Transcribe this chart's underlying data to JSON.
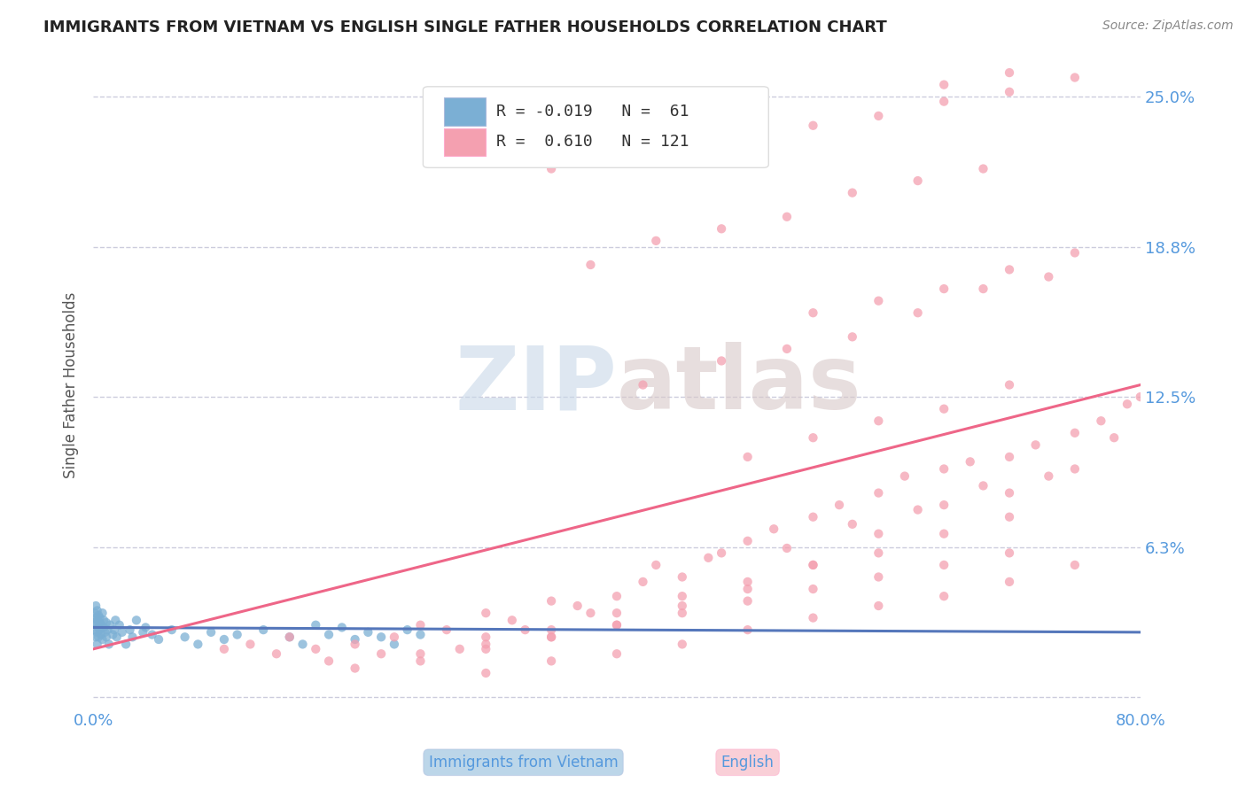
{
  "title": "IMMIGRANTS FROM VIETNAM VS ENGLISH SINGLE FATHER HOUSEHOLDS CORRELATION CHART",
  "source": "Source: ZipAtlas.com",
  "xlabel_blue": "Immigrants from Vietnam",
  "xlabel_pink": "English",
  "ylabel": "Single Father Households",
  "watermark_top": "ZIP",
  "watermark_bot": "atlas",
  "xlim": [
    0.0,
    0.8
  ],
  "ylim": [
    -0.005,
    0.265
  ],
  "ytick_vals": [
    0.0,
    0.0625,
    0.125,
    0.1875,
    0.25
  ],
  "ytick_labels": [
    "",
    "6.3%",
    "12.5%",
    "18.8%",
    "25.0%"
  ],
  "blue_R": -0.019,
  "blue_N": 61,
  "pink_R": 0.61,
  "pink_N": 121,
  "blue_color": "#7BAFD4",
  "pink_color": "#F4A0B0",
  "blue_line_color": "#5577BB",
  "pink_line_color": "#EE6688",
  "grid_color": "#CCCCDD",
  "title_color": "#222222",
  "axis_label_color": "#555555",
  "tick_label_color": "#5599DD",
  "blue_scatter_x": [
    0.001,
    0.001,
    0.001,
    0.002,
    0.002,
    0.002,
    0.002,
    0.003,
    0.003,
    0.003,
    0.003,
    0.004,
    0.004,
    0.004,
    0.005,
    0.005,
    0.005,
    0.006,
    0.006,
    0.007,
    0.007,
    0.008,
    0.008,
    0.009,
    0.01,
    0.01,
    0.011,
    0.012,
    0.013,
    0.015,
    0.016,
    0.017,
    0.018,
    0.02,
    0.022,
    0.025,
    0.028,
    0.03,
    0.033,
    0.038,
    0.04,
    0.045,
    0.05,
    0.06,
    0.07,
    0.08,
    0.09,
    0.1,
    0.11,
    0.13,
    0.15,
    0.16,
    0.17,
    0.18,
    0.19,
    0.2,
    0.21,
    0.22,
    0.23,
    0.24,
    0.25
  ],
  "blue_scatter_y": [
    0.031,
    0.028,
    0.035,
    0.033,
    0.025,
    0.038,
    0.03,
    0.027,
    0.032,
    0.036,
    0.022,
    0.029,
    0.034,
    0.025,
    0.028,
    0.033,
    0.031,
    0.026,
    0.03,
    0.024,
    0.035,
    0.029,
    0.032,
    0.027,
    0.031,
    0.025,
    0.028,
    0.022,
    0.03,
    0.026,
    0.028,
    0.032,
    0.025,
    0.03,
    0.027,
    0.022,
    0.028,
    0.025,
    0.032,
    0.027,
    0.029,
    0.026,
    0.024,
    0.028,
    0.025,
    0.022,
    0.027,
    0.024,
    0.026,
    0.028,
    0.025,
    0.022,
    0.03,
    0.026,
    0.029,
    0.024,
    0.027,
    0.025,
    0.022,
    0.028,
    0.026
  ],
  "pink_scatter_x": [
    0.1,
    0.12,
    0.14,
    0.15,
    0.17,
    0.18,
    0.2,
    0.22,
    0.23,
    0.25,
    0.27,
    0.28,
    0.3,
    0.3,
    0.32,
    0.33,
    0.35,
    0.35,
    0.37,
    0.38,
    0.4,
    0.4,
    0.42,
    0.43,
    0.45,
    0.45,
    0.47,
    0.48,
    0.5,
    0.5,
    0.52,
    0.53,
    0.55,
    0.55,
    0.57,
    0.58,
    0.6,
    0.6,
    0.62,
    0.63,
    0.65,
    0.65,
    0.67,
    0.68,
    0.7,
    0.7,
    0.72,
    0.73,
    0.75,
    0.75,
    0.77,
    0.78,
    0.79,
    0.8,
    0.25,
    0.3,
    0.35,
    0.4,
    0.45,
    0.5,
    0.55,
    0.6,
    0.65,
    0.7,
    0.3,
    0.35,
    0.4,
    0.45,
    0.5,
    0.55,
    0.6,
    0.65,
    0.7,
    0.75,
    0.2,
    0.25,
    0.3,
    0.35,
    0.4,
    0.45,
    0.5,
    0.55,
    0.6,
    0.65,
    0.7,
    0.42,
    0.48,
    0.53,
    0.58,
    0.63,
    0.68,
    0.73,
    0.5,
    0.55,
    0.6,
    0.65,
    0.7,
    0.38,
    0.43,
    0.48,
    0.53,
    0.58,
    0.63,
    0.68,
    0.55,
    0.6,
    0.65,
    0.7,
    0.75,
    0.35,
    0.4,
    0.45,
    0.5,
    0.55,
    0.6,
    0.65,
    0.7,
    0.75,
    0.65,
    0.7
  ],
  "pink_scatter_y": [
    0.02,
    0.022,
    0.018,
    0.025,
    0.02,
    0.015,
    0.022,
    0.018,
    0.025,
    0.03,
    0.028,
    0.02,
    0.025,
    0.035,
    0.032,
    0.028,
    0.04,
    0.025,
    0.038,
    0.035,
    0.042,
    0.03,
    0.048,
    0.055,
    0.05,
    0.038,
    0.058,
    0.06,
    0.065,
    0.045,
    0.07,
    0.062,
    0.075,
    0.055,
    0.08,
    0.072,
    0.085,
    0.068,
    0.092,
    0.078,
    0.095,
    0.08,
    0.098,
    0.088,
    0.1,
    0.085,
    0.105,
    0.092,
    0.11,
    0.095,
    0.115,
    0.108,
    0.122,
    0.125,
    0.015,
    0.02,
    0.025,
    0.03,
    0.035,
    0.04,
    0.045,
    0.05,
    0.055,
    0.06,
    0.01,
    0.015,
    0.018,
    0.022,
    0.028,
    0.033,
    0.038,
    0.042,
    0.048,
    0.055,
    0.012,
    0.018,
    0.022,
    0.028,
    0.035,
    0.042,
    0.048,
    0.055,
    0.06,
    0.068,
    0.075,
    0.13,
    0.14,
    0.145,
    0.15,
    0.16,
    0.17,
    0.175,
    0.1,
    0.108,
    0.115,
    0.12,
    0.13,
    0.18,
    0.19,
    0.195,
    0.2,
    0.21,
    0.215,
    0.22,
    0.16,
    0.165,
    0.17,
    0.178,
    0.185,
    0.22,
    0.225,
    0.228,
    0.232,
    0.238,
    0.242,
    0.248,
    0.252,
    0.258,
    0.255,
    0.26
  ],
  "blue_line_x0": 0.0,
  "blue_line_x1": 0.8,
  "blue_line_y0": 0.029,
  "blue_line_y1": 0.027,
  "pink_line_x0": 0.0,
  "pink_line_x1": 0.8,
  "pink_line_y0": 0.02,
  "pink_line_y1": 0.13
}
